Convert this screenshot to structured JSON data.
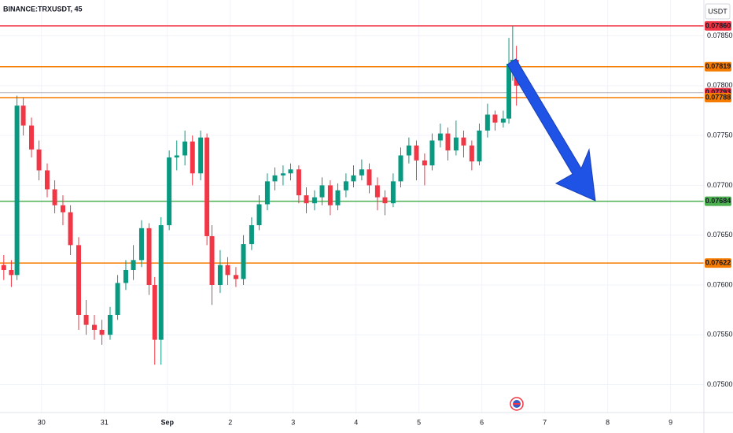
{
  "chart_data": {
    "type": "candlestick",
    "title": "BINANCE:TRXUSDT, 45",
    "currency": "USDT",
    "up_color": "#089981",
    "down_color": "#f23645",
    "grid": true,
    "xlim": [
      -0.66,
      10.53
    ],
    "xticks": [
      {
        "value": 0,
        "label": "30"
      },
      {
        "value": 1,
        "label": "31"
      },
      {
        "value": 2,
        "label": "Sep"
      },
      {
        "value": 3,
        "label": "2"
      },
      {
        "value": 4,
        "label": "3"
      },
      {
        "value": 5,
        "label": "4"
      },
      {
        "value": 6,
        "label": "5"
      },
      {
        "value": 7,
        "label": "6"
      },
      {
        "value": 8,
        "label": "7"
      },
      {
        "value": 9,
        "label": "8"
      },
      {
        "value": 10,
        "label": "9"
      }
    ],
    "ylim": [
      0.07472,
      0.07886
    ],
    "yticks": [
      {
        "value": 0.075,
        "label": "0.07500"
      },
      {
        "value": 0.0755,
        "label": "0.07550"
      },
      {
        "value": 0.076,
        "label": "0.07600"
      },
      {
        "value": 0.0765,
        "label": "0.07650"
      },
      {
        "value": 0.077,
        "label": "0.07700"
      },
      {
        "value": 0.0775,
        "label": "0.07750"
      },
      {
        "value": 0.078,
        "label": "0.07800"
      },
      {
        "value": 0.0785,
        "label": "0.07850"
      }
    ],
    "levels": [
      {
        "value": 0.0786,
        "label": "0.07860",
        "color": "#f23645"
      },
      {
        "value": 0.07819,
        "label": "0.07819",
        "color": "#f57c00"
      },
      {
        "value": 0.07793,
        "label": "0.07793",
        "color": "#f23645",
        "line_color": "#b2b5be"
      },
      {
        "value": 0.07788,
        "label": "0.07788",
        "color": "#f57c00"
      },
      {
        "value": 0.07684,
        "label": "0.07684",
        "color": "#4caf50"
      },
      {
        "value": 0.07622,
        "label": "0.07622",
        "color": "#f57c00"
      }
    ],
    "x": [
      -0.6,
      -0.48,
      -0.39,
      -0.29,
      -0.16,
      -0.04,
      0.09,
      0.21,
      0.34,
      0.46,
      0.59,
      0.71,
      0.84,
      0.96,
      1.09,
      1.21,
      1.34,
      1.46,
      1.59,
      1.71,
      1.8,
      1.9,
      2.03,
      2.15,
      2.28,
      2.4,
      2.53,
      2.63,
      2.71,
      2.84,
      2.96,
      3.09,
      3.21,
      3.34,
      3.46,
      3.59,
      3.71,
      3.84,
      3.96,
      4.09,
      4.21,
      4.34,
      4.46,
      4.59,
      4.71,
      4.84,
      4.96,
      5.09,
      5.21,
      5.34,
      5.46,
      5.59,
      5.71,
      5.84,
      5.96,
      6.09,
      6.21,
      6.34,
      6.46,
      6.59,
      6.71,
      6.84,
      6.96,
      7.09,
      7.21,
      7.34,
      7.43,
      7.49,
      7.55
    ],
    "open": [
      0.0762,
      0.07615,
      0.0761,
      0.0778,
      0.0776,
      0.07736,
      0.07715,
      0.07696,
      0.0768,
      0.07673,
      0.0764,
      0.0757,
      0.0756,
      0.07555,
      0.0755,
      0.0757,
      0.07602,
      0.07615,
      0.07625,
      0.07657,
      0.076,
      0.07545,
      0.0766,
      0.07728,
      0.0773,
      0.07744,
      0.07712,
      0.07748,
      0.07649,
      0.076,
      0.0762,
      0.0761,
      0.07606,
      0.07641,
      0.0766,
      0.07681,
      0.07704,
      0.0771,
      0.07712,
      0.07716,
      0.0769,
      0.07682,
      0.07688,
      0.077,
      0.0768,
      0.07695,
      0.07704,
      0.0771,
      0.07716,
      0.077,
      0.07688,
      0.07682,
      0.07704,
      0.0773,
      0.0774,
      0.07725,
      0.0772,
      0.07745,
      0.07752,
      0.07735,
      0.07748,
      0.0774,
      0.07724,
      0.07755,
      0.07771,
      0.07763,
      0.07767,
      0.07822,
      0.07826
    ],
    "high": [
      0.0763,
      0.07625,
      0.0779,
      0.07788,
      0.07768,
      0.07745,
      0.07722,
      0.07705,
      0.0769,
      0.0768,
      0.07648,
      0.07585,
      0.0757,
      0.07565,
      0.07578,
      0.0761,
      0.07625,
      0.0764,
      0.07665,
      0.07662,
      0.07608,
      0.07668,
      0.07735,
      0.07745,
      0.07755,
      0.0775,
      0.07755,
      0.07752,
      0.0766,
      0.07635,
      0.07628,
      0.07618,
      0.0765,
      0.07668,
      0.0769,
      0.07712,
      0.07718,
      0.0772,
      0.07722,
      0.0772,
      0.07698,
      0.07695,
      0.07708,
      0.07705,
      0.07702,
      0.07712,
      0.0772,
      0.07726,
      0.07722,
      0.07708,
      0.07695,
      0.07712,
      0.07738,
      0.07748,
      0.07745,
      0.07732,
      0.07752,
      0.07762,
      0.07758,
      0.07765,
      0.07755,
      0.07745,
      0.07762,
      0.07782,
      0.07775,
      0.07775,
      0.07848,
      0.0786,
      0.0784
    ],
    "low": [
      0.07605,
      0.07598,
      0.07605,
      0.0775,
      0.07728,
      0.07705,
      0.07688,
      0.07672,
      0.0766,
      0.0763,
      0.07555,
      0.0755,
      0.07545,
      0.0754,
      0.07545,
      0.07565,
      0.07595,
      0.07605,
      0.07618,
      0.0759,
      0.0752,
      0.0752,
      0.07655,
      0.07715,
      0.0772,
      0.077,
      0.07705,
      0.0764,
      0.0758,
      0.07592,
      0.076,
      0.07598,
      0.076,
      0.07635,
      0.07655,
      0.07675,
      0.07695,
      0.077,
      0.07705,
      0.07682,
      0.07672,
      0.07675,
      0.0768,
      0.0767,
      0.07675,
      0.07688,
      0.07698,
      0.07705,
      0.07692,
      0.07675,
      0.0767,
      0.07678,
      0.07698,
      0.07722,
      0.07705,
      0.077,
      0.07715,
      0.07738,
      0.07725,
      0.0773,
      0.07728,
      0.07715,
      0.0772,
      0.07748,
      0.07755,
      0.07758,
      0.07762,
      0.07805,
      0.0778
    ],
    "close": [
      0.07615,
      0.0761,
      0.0778,
      0.0776,
      0.07736,
      0.07715,
      0.07696,
      0.0768,
      0.07673,
      0.0764,
      0.0757,
      0.0756,
      0.07555,
      0.0755,
      0.0757,
      0.07602,
      0.07615,
      0.07625,
      0.07657,
      0.076,
      0.07545,
      0.0766,
      0.07728,
      0.0773,
      0.07744,
      0.07712,
      0.07748,
      0.07649,
      0.076,
      0.0762,
      0.0761,
      0.07606,
      0.07641,
      0.0766,
      0.07681,
      0.07704,
      0.0771,
      0.07712,
      0.07716,
      0.0769,
      0.07682,
      0.07688,
      0.077,
      0.0768,
      0.07695,
      0.07704,
      0.0771,
      0.07716,
      0.077,
      0.07688,
      0.07682,
      0.07704,
      0.0773,
      0.0774,
      0.07725,
      0.0772,
      0.07745,
      0.07752,
      0.07735,
      0.07748,
      0.0774,
      0.07724,
      0.07755,
      0.07771,
      0.07763,
      0.07767,
      0.07822,
      0.07826,
      0.078
    ]
  }
}
